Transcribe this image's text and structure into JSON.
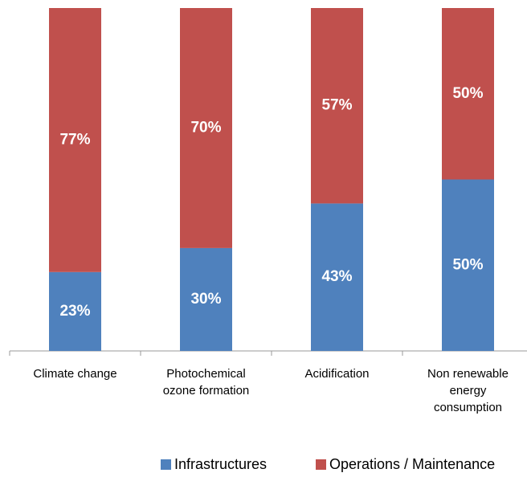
{
  "chart_data": {
    "type": "stacked-bar",
    "categories": [
      "Climate change",
      "Photochemical ozone formation",
      "Acidification",
      "Non renewable energy consumption"
    ],
    "series": [
      {
        "name": "Infrastructures",
        "color": "#4f81bd",
        "values": [
          23,
          30,
          43,
          50
        ],
        "value_labels": [
          "23%",
          "30%",
          "43%",
          "50%"
        ]
      },
      {
        "name": "Operations / Maintenance",
        "color": "#c0504d",
        "values": [
          77,
          70,
          57,
          50
        ],
        "value_labels": [
          "77%",
          "70%",
          "57%",
          "50%"
        ]
      }
    ],
    "legend": "bottom"
  }
}
